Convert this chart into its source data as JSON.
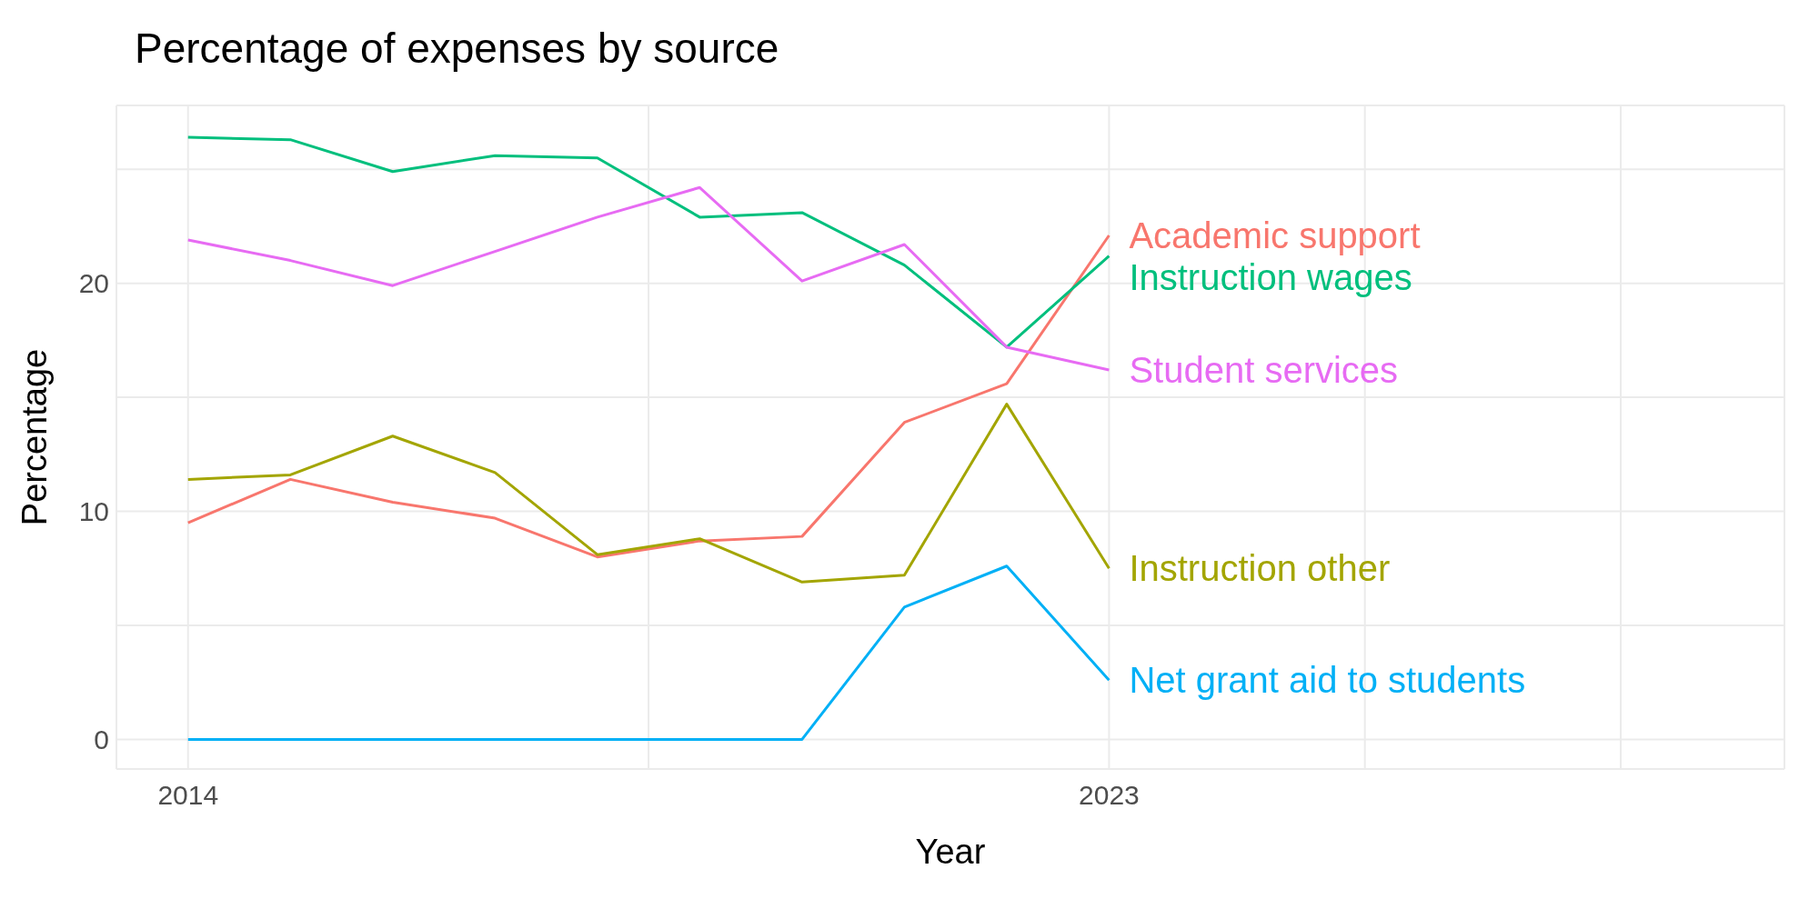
{
  "chart_data": {
    "type": "line",
    "title": "Percentage of expenses by source",
    "xlabel": "Year",
    "ylabel": "Percentage",
    "x": [
      2014,
      2015,
      2016,
      2017,
      2018,
      2019,
      2020,
      2021,
      2022,
      2023
    ],
    "xlim": [
      2013.3,
      2029.6
    ],
    "xticks": [
      2014,
      {
        "value": 2018.5,
        "label": null
      },
      2023,
      {
        "value": 2025.5,
        "label": null
      },
      {
        "value": 2028,
        "label": null
      }
    ],
    "ylim": [
      -1.3,
      27.8
    ],
    "yticks": [
      0,
      {
        "value": 5,
        "label": null
      },
      10,
      {
        "value": 15,
        "label": null
      },
      20,
      {
        "value": 25,
        "label": null
      }
    ],
    "grid": true,
    "line_style": "solid",
    "marker": "none",
    "series": [
      {
        "name": "Academic support",
        "color": "#f8766d",
        "values": [
          9.5,
          11.4,
          10.4,
          9.7,
          8.0,
          8.7,
          8.9,
          13.9,
          15.6,
          22.1
        ]
      },
      {
        "name": "Instruction wages",
        "color": "#00bf7d",
        "values": [
          26.4,
          26.3,
          24.9,
          25.6,
          25.5,
          22.9,
          23.1,
          20.8,
          17.2,
          21.2
        ]
      },
      {
        "name": "Student services",
        "color": "#e76bf3",
        "values": [
          21.9,
          21.0,
          19.9,
          21.4,
          22.9,
          24.2,
          20.1,
          21.7,
          17.2,
          16.2
        ]
      },
      {
        "name": "Instruction other",
        "color": "#a3a500",
        "values": [
          11.4,
          11.6,
          13.3,
          11.7,
          8.1,
          8.8,
          6.9,
          7.2,
          14.7,
          7.5
        ]
      },
      {
        "name": "Net grant aid to students",
        "color": "#00b0f6",
        "values": [
          0,
          0,
          0,
          0,
          0,
          0,
          0,
          5.8,
          7.6,
          2.6
        ]
      }
    ]
  }
}
